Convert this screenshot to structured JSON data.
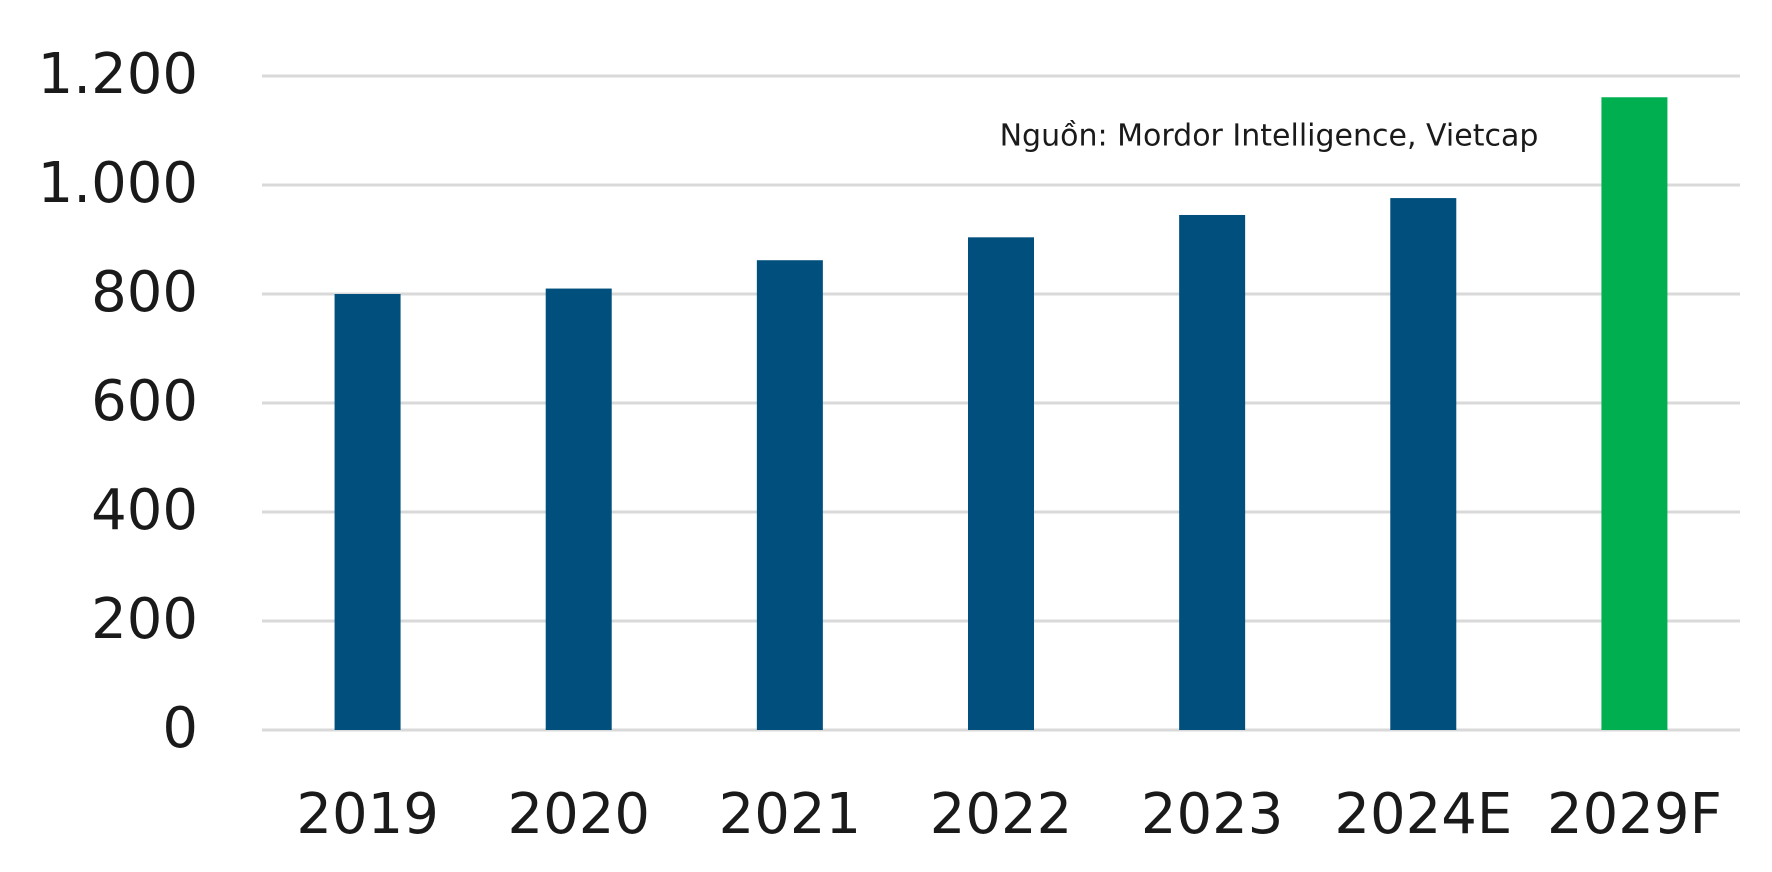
{
  "chart_data": {
    "type": "bar",
    "annotation": "Nguồn: Mordor Intelligence, Vietcap",
    "categories": [
      "2019",
      "2020",
      "2021",
      "2022",
      "2023",
      "2024E",
      "2029F"
    ],
    "values": [
      800,
      810,
      862,
      904,
      945,
      976,
      1161
    ],
    "colors": [
      "#004f7c",
      "#004f7c",
      "#004f7c",
      "#004f7c",
      "#004f7c",
      "#004f7c",
      "#00b050"
    ],
    "ylim": [
      0,
      1200
    ],
    "yticks": [
      0,
      200,
      400,
      600,
      800,
      {
        "value": 1000,
        "label": "1.000"
      },
      {
        "value": 1200,
        "label": "1.200"
      }
    ],
    "grid": true
  }
}
